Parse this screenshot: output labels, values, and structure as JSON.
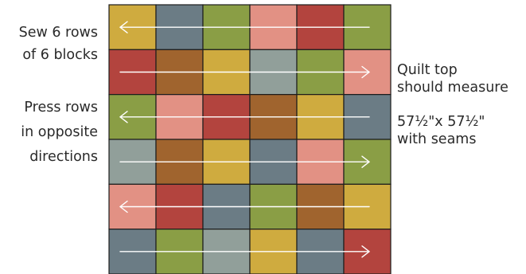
{
  "left_notes": {
    "sew_line1": "Sew 6 rows",
    "sew_line2": "of 6 blocks",
    "press_line1": "Press rows",
    "press_line2": "in opposite",
    "press_line3": "directions"
  },
  "right_notes": {
    "top_line1": "Quilt top",
    "top_line2": "should measure",
    "size": "57½\"x 57½\"",
    "seams": "with seams"
  },
  "quilt": {
    "rows": 6,
    "cols": 6,
    "colors": {
      "mustard": "#cfab3f",
      "slate": "#6b7c85",
      "olive": "#8a9e45",
      "pink": "#e29184",
      "red": "#b3443e",
      "brown": "#a0642e",
      "sage": "#919f9a"
    },
    "blocks": [
      [
        "mustard",
        "slate",
        "olive",
        "pink",
        "red",
        "olive"
      ],
      [
        "red",
        "brown",
        "mustard",
        "sage",
        "olive",
        "pink"
      ],
      [
        "olive",
        "pink",
        "red",
        "brown",
        "mustard",
        "slate"
      ],
      [
        "sage",
        "brown",
        "mustard",
        "slate",
        "pink",
        "olive"
      ],
      [
        "pink",
        "red",
        "slate",
        "olive",
        "brown",
        "mustard"
      ],
      [
        "slate",
        "olive",
        "sage",
        "mustard",
        "slate",
        "red"
      ]
    ],
    "row_directions": [
      "left",
      "right",
      "left",
      "right",
      "left",
      "right"
    ],
    "grid_line_color": "#1c1c1c",
    "arrow_color": "#ffffff"
  }
}
